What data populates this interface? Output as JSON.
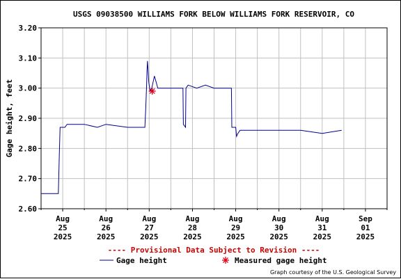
{
  "chart_data": {
    "type": "line",
    "title": "USGS 09038500 WILLIAMS FORK BELOW WILLIAMS FORK RESERVOIR, CO",
    "ylabel": "Gage height, feet",
    "xlabel": "",
    "ylim": [
      2.6,
      3.2
    ],
    "yticks": [
      "2.60",
      "2.70",
      "2.80",
      "2.90",
      "3.00",
      "3.10",
      "3.20"
    ],
    "xlim": [
      "2025-08-24T12:00",
      "2025-09-01T12:00"
    ],
    "xticks": [
      {
        "line1": "Aug",
        "line2": "25",
        "line3": "2025",
        "x": 0.5
      },
      {
        "line1": "Aug",
        "line2": "26",
        "line3": "2025",
        "x": 1.5
      },
      {
        "line1": "Aug",
        "line2": "27",
        "line3": "2025",
        "x": 2.5
      },
      {
        "line1": "Aug",
        "line2": "28",
        "line3": "2025",
        "x": 3.5
      },
      {
        "line1": "Aug",
        "line2": "29",
        "line3": "2025",
        "x": 4.5
      },
      {
        "line1": "Aug",
        "line2": "30",
        "line3": "2025",
        "x": 5.5
      },
      {
        "line1": "Aug",
        "line2": "31",
        "line3": "2025",
        "x": 6.5
      },
      {
        "line1": "Sep",
        "line2": "01",
        "line3": "2025",
        "x": 7.5
      }
    ],
    "grid": true,
    "series": [
      {
        "name": "Gage height",
        "color": "#00008b",
        "points": [
          [
            0.0,
            2.65
          ],
          [
            0.4,
            2.65
          ],
          [
            0.42,
            2.77
          ],
          [
            0.44,
            2.87
          ],
          [
            0.55,
            2.87
          ],
          [
            0.6,
            2.88
          ],
          [
            1.0,
            2.88
          ],
          [
            1.3,
            2.87
          ],
          [
            1.5,
            2.88
          ],
          [
            2.0,
            2.87
          ],
          [
            2.4,
            2.87
          ],
          [
            2.42,
            2.93
          ],
          [
            2.44,
            3.01
          ],
          [
            2.45,
            3.06
          ],
          [
            2.46,
            3.09
          ],
          [
            2.47,
            3.07
          ],
          [
            2.49,
            3.02
          ],
          [
            2.52,
            2.99
          ],
          [
            2.56,
            3.0
          ],
          [
            2.62,
            3.04
          ],
          [
            2.66,
            3.02
          ],
          [
            2.7,
            3.0
          ],
          [
            3.0,
            3.0
          ],
          [
            3.2,
            3.0
          ],
          [
            3.28,
            3.0
          ],
          [
            3.29,
            2.88
          ],
          [
            3.34,
            2.87
          ],
          [
            3.35,
            3.0
          ],
          [
            3.4,
            3.01
          ],
          [
            3.6,
            3.0
          ],
          [
            3.8,
            3.01
          ],
          [
            4.0,
            3.0
          ],
          [
            4.4,
            3.0
          ],
          [
            4.41,
            2.87
          ],
          [
            4.5,
            2.87
          ],
          [
            4.52,
            2.84
          ],
          [
            4.55,
            2.85
          ],
          [
            4.6,
            2.86
          ],
          [
            5.0,
            2.86
          ],
          [
            5.5,
            2.86
          ],
          [
            6.0,
            2.86
          ],
          [
            6.5,
            2.85
          ],
          [
            6.95,
            2.86
          ]
        ]
      }
    ],
    "measured": [
      {
        "name": "Measured gage height",
        "x": 2.57,
        "y": 2.99,
        "color": "#e0001b"
      }
    ],
    "annotation": "---- Provisional Data Subject to Revision ----",
    "legend": [
      {
        "label": "Gage height",
        "type": "line",
        "color": "#00008b"
      },
      {
        "label": "Measured gage height",
        "type": "marker",
        "color": "#e0001b"
      }
    ],
    "credit": "Graph courtesy of the U.S. Geological Survey"
  }
}
